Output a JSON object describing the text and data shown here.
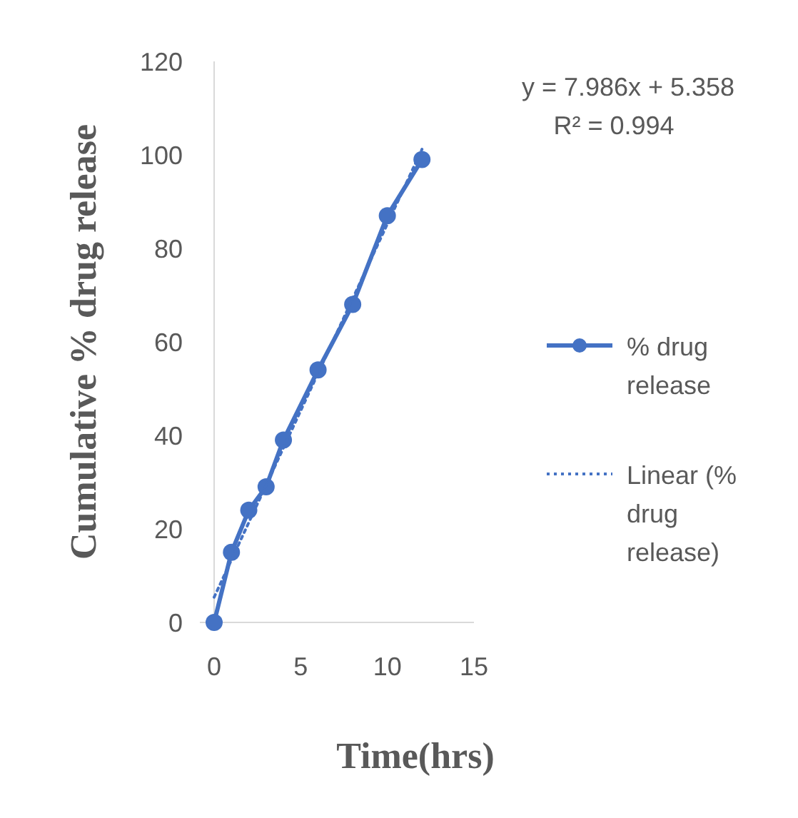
{
  "chart_data": {
    "type": "line",
    "xlabel": "Time(hrs)",
    "ylabel": "Cumulative % drug release",
    "xlim": [
      0,
      15
    ],
    "xticks": [
      0,
      5,
      10,
      15
    ],
    "ylim": [
      0,
      120
    ],
    "yticks": [
      0,
      20,
      40,
      60,
      80,
      100,
      120
    ],
    "grid": false,
    "legend": "right",
    "annotations": [
      "y = 7.986x + 5.358",
      "R² = 0.994"
    ],
    "series": [
      {
        "name": "% drug release",
        "color": "#4472c4",
        "marker": "circle",
        "line_style": "solid",
        "x": [
          0,
          1,
          2,
          3,
          4,
          6,
          8,
          10,
          12
        ],
        "values": [
          0,
          15,
          24,
          29,
          39,
          54,
          68,
          87,
          99
        ]
      },
      {
        "name": "Linear (% drug release)",
        "color": "#4472c4",
        "marker": "none",
        "line_style": "dotted",
        "x": [
          0,
          12
        ],
        "values": [
          5.4,
          101.2
        ]
      }
    ]
  }
}
